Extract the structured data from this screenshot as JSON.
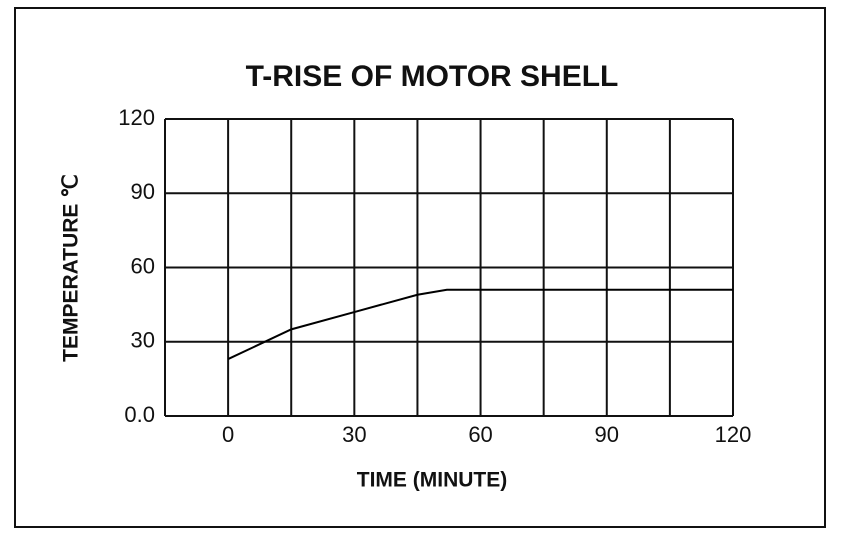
{
  "chart_data": {
    "type": "line",
    "title": "T-RISE OF MOTOR SHELL",
    "x_label": "TIME  (MINUTE)",
    "y_label": "TEMPERATURE  ℃",
    "x": [
      0,
      15,
      30,
      45,
      52,
      60,
      90,
      120
    ],
    "values": [
      23,
      35,
      42,
      49,
      51,
      51,
      51,
      51
    ],
    "color": "#000000",
    "xlim": [
      -15,
      120
    ],
    "xticks": [
      0,
      30,
      60,
      90,
      120
    ],
    "xminor_ticks": [
      -15,
      15,
      45,
      75,
      105
    ],
    "ylim": [
      0,
      120
    ],
    "yticks": [
      {
        "value": 0,
        "label": "0.0"
      },
      30,
      60,
      90,
      120
    ],
    "grid": true
  }
}
